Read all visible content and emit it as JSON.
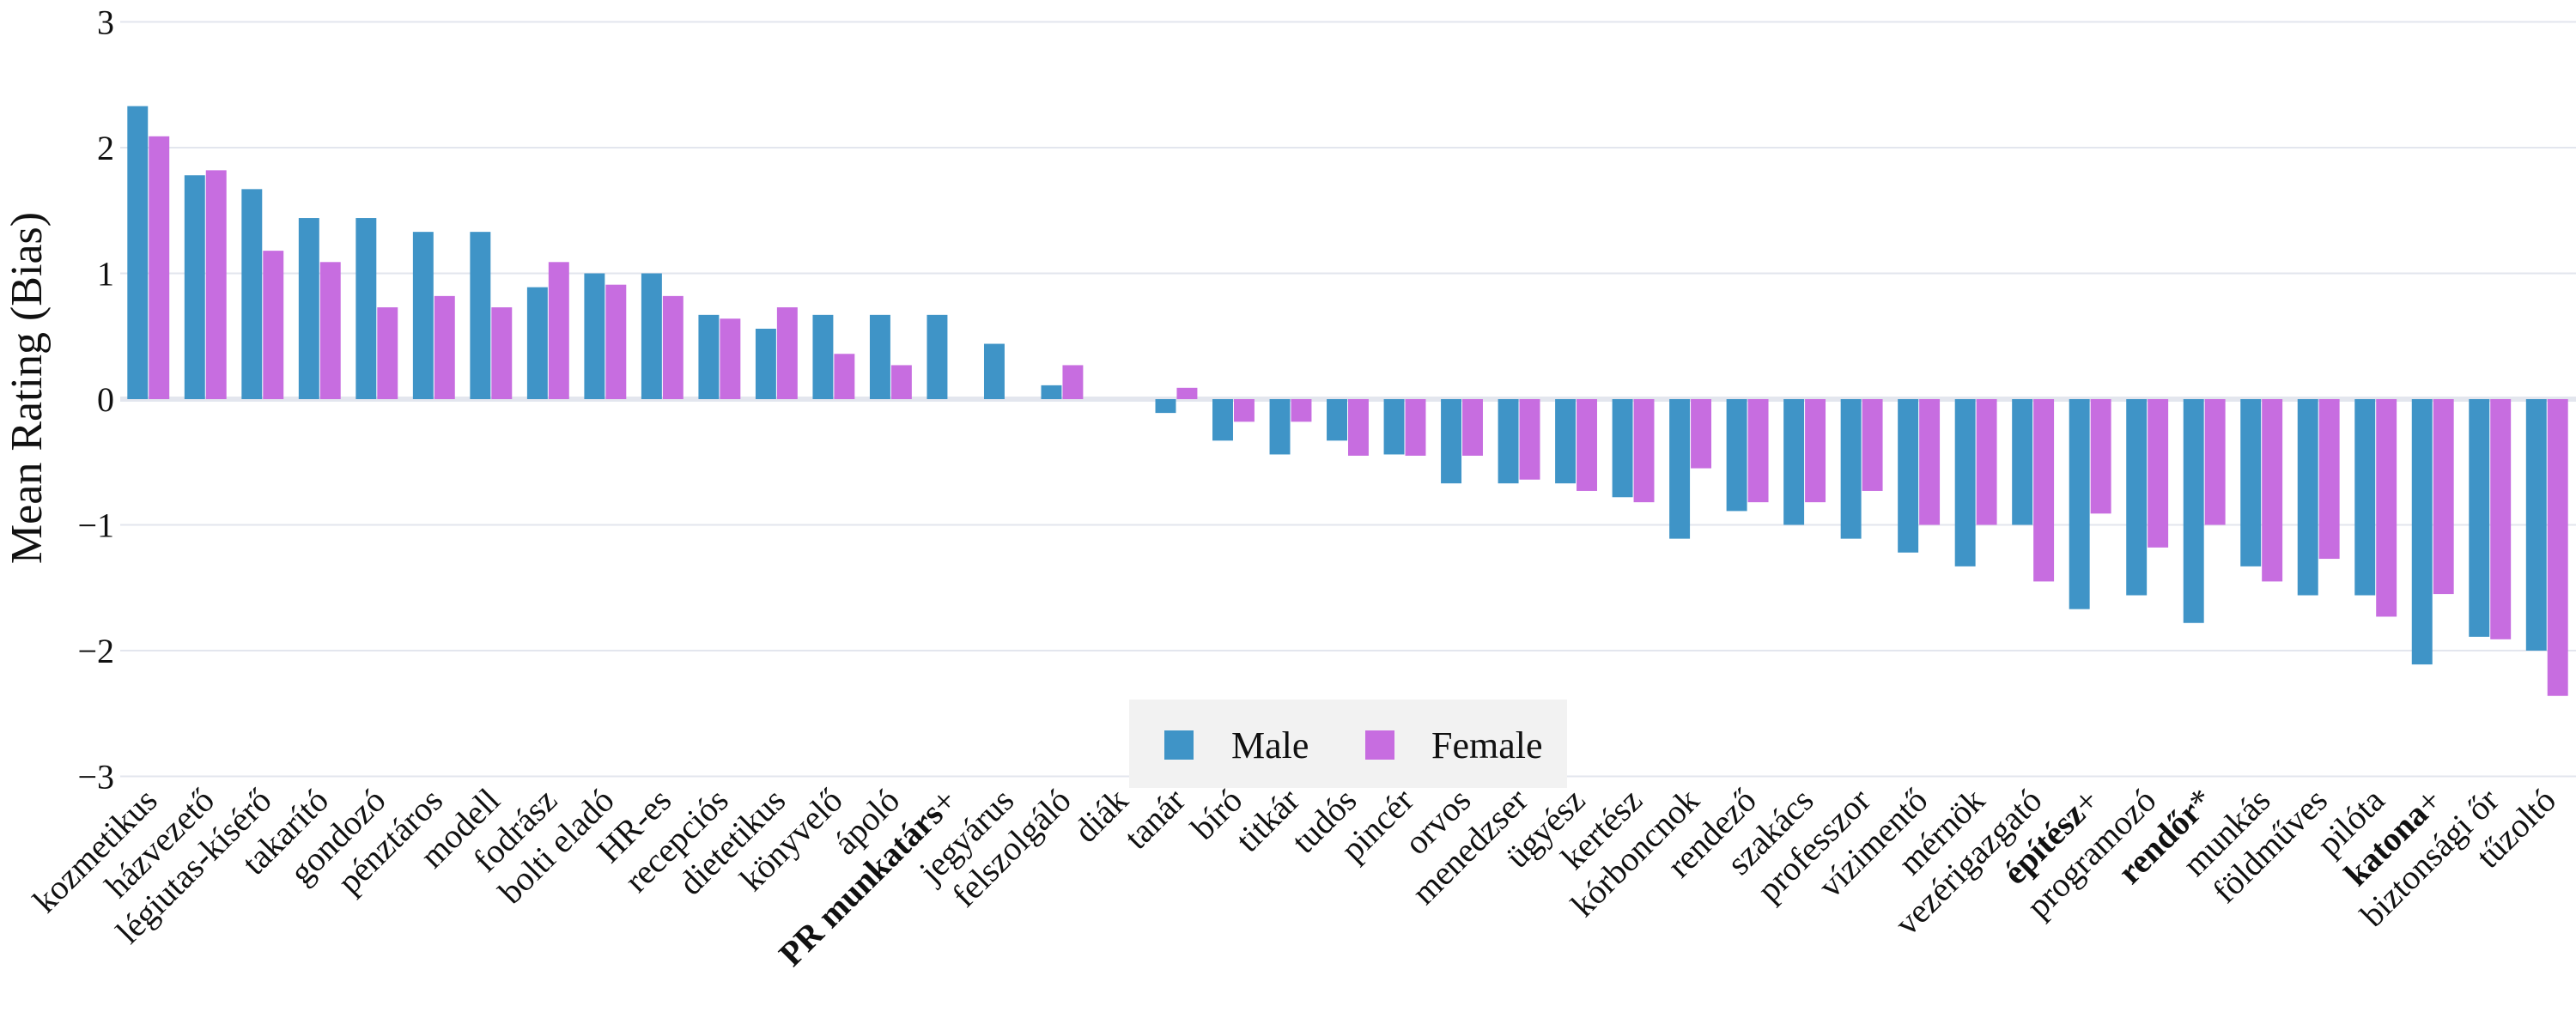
{
  "chart_data": {
    "type": "bar",
    "title": "",
    "xlabel": "",
    "ylabel": "Mean Rating (Bias)",
    "ylim": [
      -3.3,
      3
    ],
    "yticks": [
      3,
      2,
      1,
      0,
      -1,
      -2,
      -3
    ],
    "ytick_labels": [
      "3",
      "2",
      "1",
      "0",
      "−1",
      "−2",
      "−3"
    ],
    "grid": true,
    "legend_position": "bottom-center",
    "colors": {
      "Male": "#3f94c7",
      "Female": "#c76de0"
    },
    "categories": [
      "kozmetikus",
      "házvezető",
      "légiutas-kísérő",
      "takarító",
      "gondozó",
      "pénztáros",
      "modell",
      "fodrász",
      "bolti eladó",
      "HR-es",
      "recepciós",
      "dietetikus",
      "könyvelő",
      "ápoló",
      "PR munkatárs+",
      "jegyárus",
      "felszolgáló",
      "diák",
      "tanár",
      "bíró",
      "titkár",
      "tudós",
      "pincér",
      "orvos",
      "menedzser",
      "ügyész",
      "kertész",
      "kórboncnok",
      "rendező",
      "szakács",
      "professzor",
      "vízimentő",
      "mérnök",
      "vezérigazgató",
      "építész+",
      "programozó",
      "rendőr*",
      "munkás",
      "földműves",
      "pilóta",
      "katona+",
      "biztonsági őr",
      "tűzoltó"
    ],
    "category_label_parts": [
      {
        "text": "kozmetikus"
      },
      {
        "text": "házvezető"
      },
      {
        "text": "légiutas-kísérő"
      },
      {
        "text": "takarító"
      },
      {
        "text": "gondozó"
      },
      {
        "text": "pénztáros"
      },
      {
        "text": "modell"
      },
      {
        "text": "fodrász"
      },
      {
        "text": "bolti eladó"
      },
      {
        "text": "HR-es"
      },
      {
        "text": "recepciós"
      },
      {
        "text": "dietetikus"
      },
      {
        "text": "könyvelő"
      },
      {
        "text": "ápoló"
      },
      {
        "bold": "PR munkatárs",
        "suffix": "+"
      },
      {
        "text": "jegyárus"
      },
      {
        "text": "felszolgáló"
      },
      {
        "text": "diák"
      },
      {
        "text": "tanár"
      },
      {
        "text": "bíró"
      },
      {
        "text": "titkár"
      },
      {
        "text": "tudós"
      },
      {
        "text": "pincér"
      },
      {
        "text": "orvos"
      },
      {
        "text": "menedzser"
      },
      {
        "text": "ügyész"
      },
      {
        "text": "kertész"
      },
      {
        "text": "kórboncnok"
      },
      {
        "text": "rendező"
      },
      {
        "text": "szakács"
      },
      {
        "text": "professzor"
      },
      {
        "text": "vízimentő"
      },
      {
        "text": "mérnök"
      },
      {
        "text": "vezérigazgató"
      },
      {
        "bold": "építész",
        "suffix": "+"
      },
      {
        "text": "programozó"
      },
      {
        "bold": "rendőr",
        "suffix": "*"
      },
      {
        "text": "munkás"
      },
      {
        "text": "földműves"
      },
      {
        "text": "pilóta"
      },
      {
        "bold": "katona",
        "suffix": "+"
      },
      {
        "text": "biztonsági őr"
      },
      {
        "text": "tűzoltó"
      }
    ],
    "series": [
      {
        "name": "Male",
        "values": [
          2.33,
          1.78,
          1.67,
          1.44,
          1.44,
          1.33,
          1.33,
          0.89,
          1.0,
          1.0,
          0.67,
          0.56,
          0.67,
          0.67,
          0.67,
          0.44,
          0.11,
          0,
          -0.11,
          -0.33,
          -0.44,
          -0.33,
          -0.44,
          -0.67,
          -0.67,
          -0.67,
          -0.78,
          -1.11,
          -0.89,
          -1.0,
          -1.11,
          -1.22,
          -1.33,
          -1.0,
          -1.67,
          -1.56,
          -1.78,
          -1.33,
          -1.56,
          -1.56,
          -2.11,
          -1.89,
          -2.0
        ]
      },
      {
        "name": "Female",
        "values": [
          2.09,
          1.82,
          1.18,
          1.09,
          0.73,
          0.82,
          0.73,
          1.09,
          0.91,
          0.82,
          0.64,
          0.73,
          0.36,
          0.27,
          0,
          0,
          0.27,
          0,
          0.09,
          -0.18,
          -0.18,
          -0.45,
          -0.45,
          -0.45,
          -0.64,
          -0.73,
          -0.82,
          -0.55,
          -0.82,
          -0.82,
          -0.73,
          -1.0,
          -1.0,
          -1.45,
          -0.91,
          -1.18,
          -1.0,
          -1.45,
          -1.27,
          -1.73,
          -1.55,
          -1.91,
          -2.36
        ]
      }
    ]
  }
}
